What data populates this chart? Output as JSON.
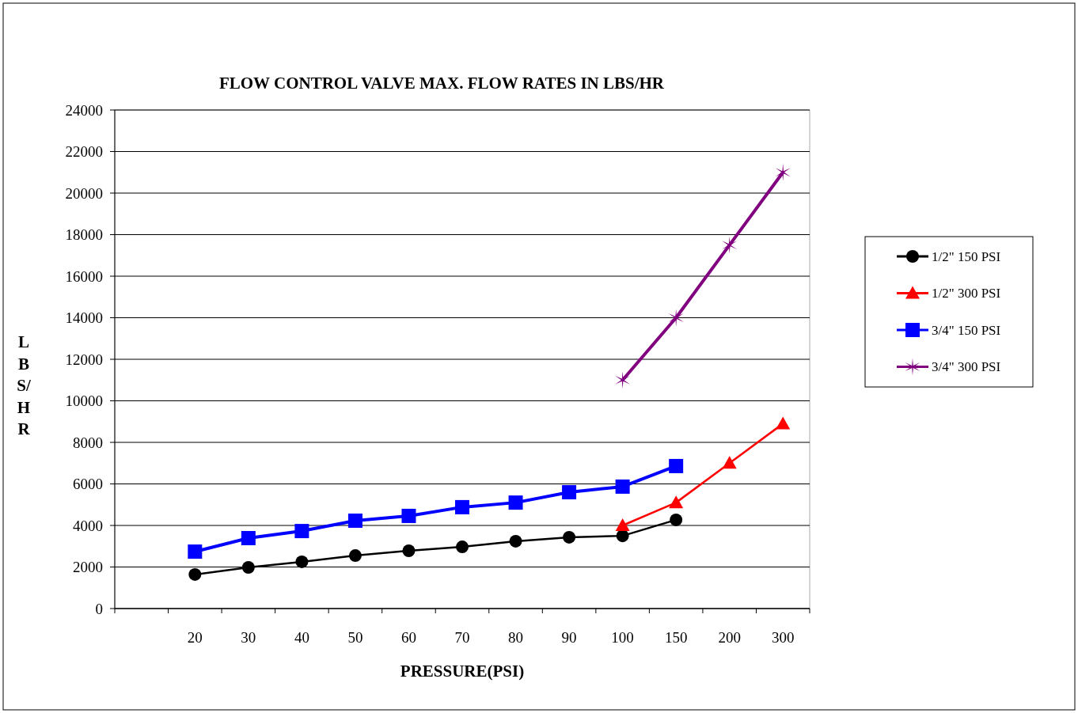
{
  "chart_data": {
    "type": "line",
    "title": "FLOW CONTROL VALVE MAX. FLOW RATES IN LBS/HR",
    "xlabel": "PRESSURE(PSI)",
    "ylabel": "LBS/HR",
    "categories": [
      null,
      "20",
      "30",
      "40",
      "50",
      "60",
      "70",
      "80",
      "90",
      "100",
      "150",
      "200",
      "300"
    ],
    "series": [
      {
        "name": "1/2\" 150 PSI",
        "color": "#000000",
        "marker": "circle",
        "values": [
          null,
          1640,
          1980,
          2250,
          2550,
          2780,
          2970,
          3240,
          3430,
          3500,
          4270,
          null,
          null
        ]
      },
      {
        "name": "1/2\" 300 PSI",
        "color": "#ff0000",
        "marker": "triangle",
        "values": [
          null,
          null,
          null,
          null,
          null,
          null,
          null,
          null,
          null,
          4000,
          5100,
          7000,
          8900
        ]
      },
      {
        "name": "3/4\" 150 PSI",
        "color": "#0000ff",
        "marker": "square",
        "values": [
          null,
          2740,
          3390,
          3730,
          4230,
          4460,
          4880,
          5100,
          5600,
          5870,
          6860,
          null,
          null
        ]
      },
      {
        "name": "3/4\" 300 PSI",
        "color": "#800080",
        "marker": "cross",
        "values": [
          null,
          null,
          null,
          null,
          null,
          null,
          null,
          null,
          null,
          11000,
          14000,
          17500,
          21000
        ]
      }
    ],
    "ylim": [
      0,
      24000
    ],
    "yticks": [
      0,
      2000,
      4000,
      6000,
      8000,
      10000,
      12000,
      14000,
      16000,
      18000,
      20000,
      22000,
      24000
    ],
    "grid": "y",
    "legend": "right"
  }
}
